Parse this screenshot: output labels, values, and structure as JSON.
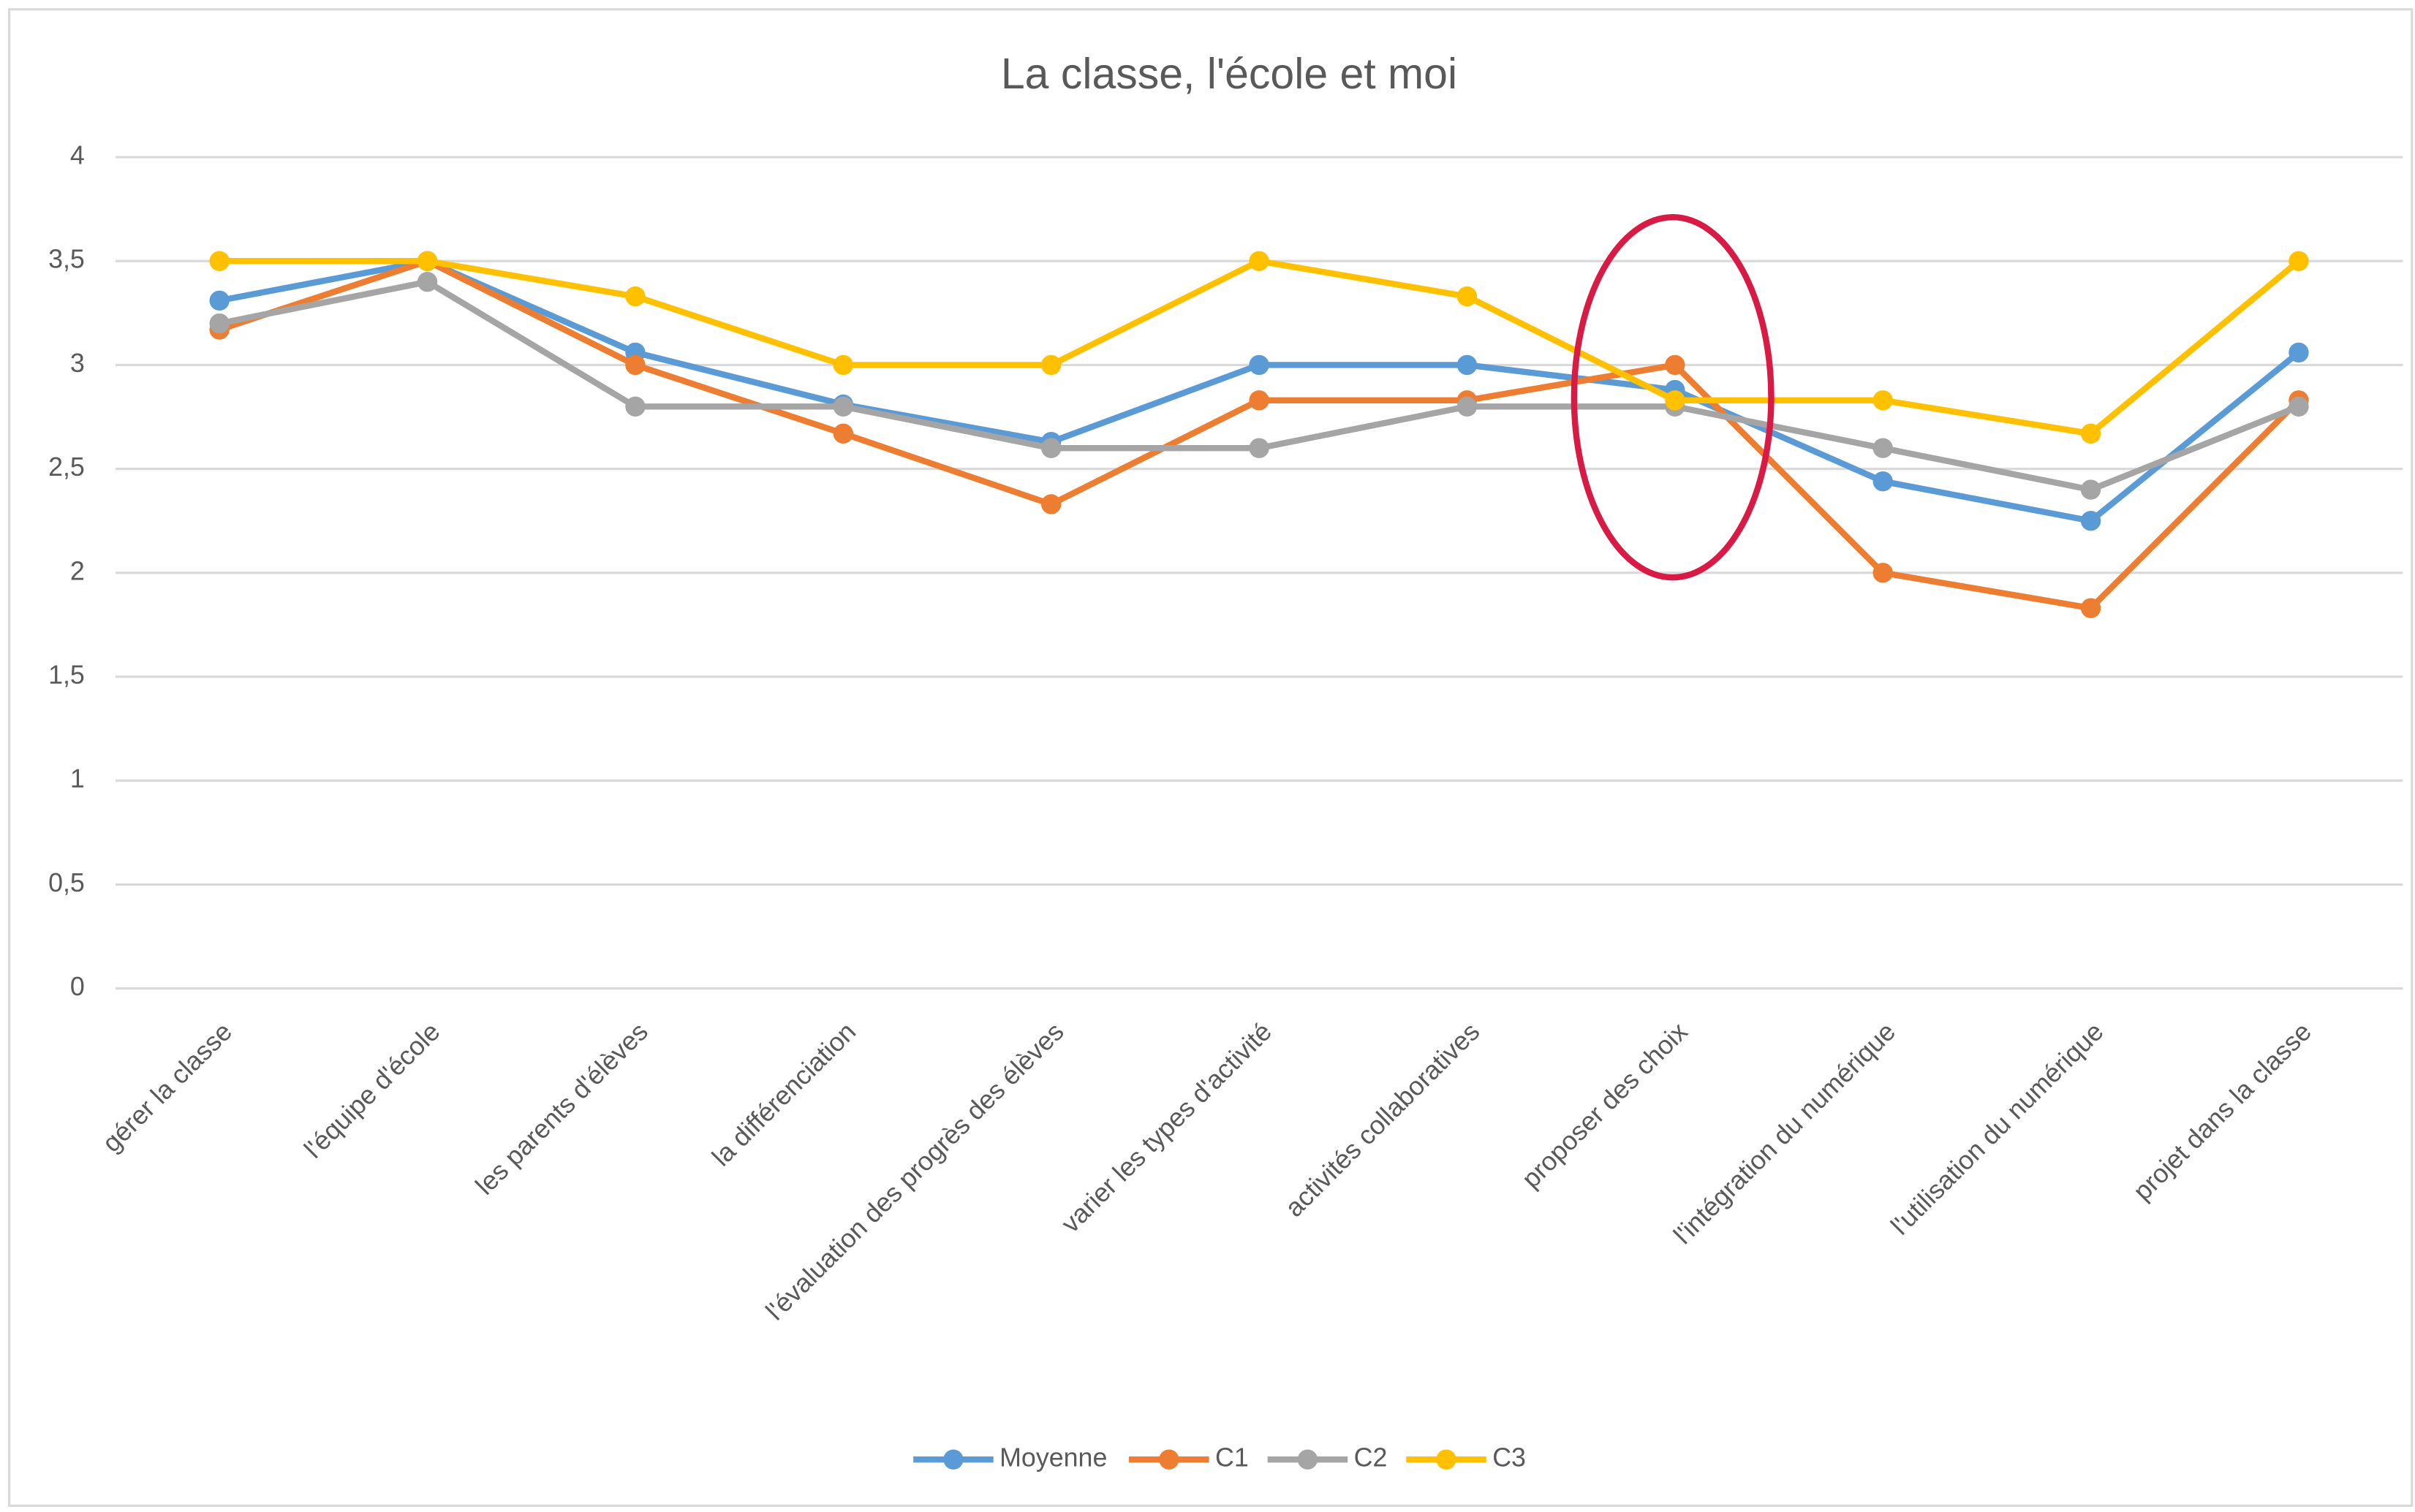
{
  "chart_data": {
    "type": "line",
    "title": "La classe, l'école et moi",
    "categories": [
      "gérer la classe",
      "l'équipe d'école",
      "les parents d'élèves",
      "la différenciation",
      "l'évaluation des progrès des élèves",
      "varier les types d'activité",
      "activités collaboratives",
      "proposer des choix",
      "l'intégration du numérique",
      "l'utilisation du numérique",
      "projet dans la classe"
    ],
    "series": [
      {
        "name": "Moyenne",
        "color": "#5b9bd5",
        "values": [
          3.31,
          3.5,
          3.06,
          2.81,
          2.63,
          3.0,
          3.0,
          2.88,
          2.44,
          2.25,
          3.06
        ]
      },
      {
        "name": "C1",
        "color": "#ed7d31",
        "values": [
          3.17,
          3.5,
          3.0,
          2.67,
          2.33,
          2.83,
          2.83,
          3.0,
          2.0,
          1.83,
          2.83
        ]
      },
      {
        "name": "C2",
        "color": "#a5a5a5",
        "values": [
          3.2,
          3.4,
          2.8,
          2.8,
          2.6,
          2.6,
          2.8,
          2.8,
          2.6,
          2.4,
          2.8
        ]
      },
      {
        "name": "C3",
        "color": "#ffc000",
        "values": [
          3.5,
          3.5,
          3.33,
          3.0,
          3.0,
          3.5,
          3.33,
          2.83,
          2.83,
          2.67,
          3.5
        ]
      }
    ],
    "ylim": [
      0,
      4
    ],
    "yticks": [
      0,
      {
        "value": 0.5,
        "label": "0,5"
      },
      1,
      {
        "value": 1.5,
        "label": "1,5"
      },
      2,
      {
        "value": 2.5,
        "label": "2,5"
      },
      3,
      {
        "value": 3.5,
        "label": "3,5"
      },
      4
    ],
    "grid": true,
    "legend": "bottom"
  }
}
